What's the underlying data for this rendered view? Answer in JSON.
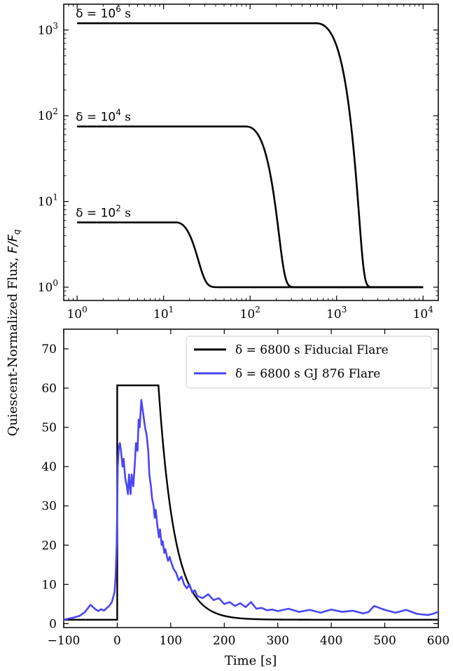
{
  "shared_ylabel": "Quiescent-Normalized Flux, F/F_q",
  "shared_ylabel_plain": "Quiescent-Normalized Flux,",
  "shared_ylabel_math": "F/F",
  "shared_ylabel_sub": "q",
  "chart_data": [
    {
      "type": "line",
      "panel": "top",
      "xscale": "log",
      "yscale": "log",
      "xlim": [
        0.7,
        15000
      ],
      "ylim": [
        0.7,
        2000
      ],
      "xticks": [
        1,
        10,
        100,
        1000,
        10000
      ],
      "xtick_labels": [
        {
          "base": "10",
          "exp": "0"
        },
        {
          "base": "10",
          "exp": "1"
        },
        {
          "base": "10",
          "exp": "2"
        },
        {
          "base": "10",
          "exp": "3"
        },
        {
          "base": "10",
          "exp": "4"
        }
      ],
      "yticks": [
        1,
        10,
        100,
        1000
      ],
      "ytick_labels": [
        {
          "base": "10",
          "exp": "0"
        },
        {
          "base": "10",
          "exp": "1"
        },
        {
          "base": "10",
          "exp": "2"
        },
        {
          "base": "10",
          "exp": "3"
        }
      ],
      "series": [
        {
          "annotation": {
            "prefix": "δ = 10",
            "exp": "2",
            "suffix": " s"
          },
          "peak": 5.7,
          "t_end": 14,
          "decay": 6.5,
          "color": "#000000"
        },
        {
          "annotation": {
            "prefix": "δ = 10",
            "exp": "4",
            "suffix": " s"
          },
          "peak": 75,
          "t_end": 90,
          "decay": 50,
          "color": "#000000"
        },
        {
          "annotation": {
            "prefix": "δ = 10",
            "exp": "6",
            "suffix": " s"
          },
          "peak": 1200,
          "t_end": 580,
          "decay": 380,
          "color": "#000000"
        }
      ],
      "x_start": 1,
      "x_end": 10000,
      "baseline": 1
    },
    {
      "type": "line",
      "panel": "bottom",
      "xlabel": "Time [s]",
      "xlim": [
        -100,
        600
      ],
      "ylim": [
        -1,
        75
      ],
      "xticks": [
        -100,
        0,
        100,
        200,
        300,
        400,
        500,
        600
      ],
      "xtick_labels": [
        "−100",
        "0",
        "100",
        "200",
        "300",
        "400",
        "500",
        "600"
      ],
      "yticks": [
        0,
        10,
        20,
        30,
        40,
        50,
        60,
        70
      ],
      "ytick_labels": [
        "0",
        "10",
        "20",
        "30",
        "40",
        "50",
        "60",
        "70"
      ],
      "legend_position": "top-right",
      "series": [
        {
          "name": "δ = 6800 s Fiducial Flare",
          "color": "#000000",
          "kind": "model",
          "quiescent": 1,
          "onset": 0,
          "plateau": 60.7,
          "plateau_end": 77,
          "decay_tau": 30
        },
        {
          "name": "δ = 6800 s GJ 876 Flare",
          "color": "#4a46f4",
          "kind": "observed",
          "x": [
            -100,
            -90,
            -80,
            -70,
            -60,
            -50,
            -45,
            -40,
            -35,
            -30,
            -25,
            -20,
            -15,
            -10,
            -8,
            -5,
            -3,
            -1,
            0,
            1,
            3,
            5,
            7,
            10,
            12,
            15,
            18,
            20,
            22,
            25,
            27,
            30,
            33,
            35,
            38,
            40,
            42,
            45,
            47,
            50,
            52,
            55,
            58,
            60,
            63,
            65,
            68,
            70,
            72,
            75,
            78,
            80,
            83,
            85,
            88,
            90,
            93,
            95,
            98,
            100,
            105,
            110,
            115,
            120,
            125,
            130,
            135,
            140,
            145,
            150,
            160,
            170,
            180,
            190,
            200,
            210,
            220,
            230,
            240,
            250,
            260,
            270,
            280,
            290,
            300,
            320,
            340,
            360,
            380,
            400,
            420,
            440,
            460,
            470,
            480,
            500,
            520,
            540,
            560,
            580,
            590,
            600
          ],
          "y": [
            1.0,
            1.3,
            1.6,
            2.0,
            3.0,
            4.8,
            4.2,
            3.6,
            3.2,
            3.7,
            3.3,
            3.9,
            4.5,
            5.5,
            6.5,
            8.0,
            12,
            20,
            30,
            40,
            45,
            46,
            44,
            40,
            42,
            37,
            35,
            33,
            38,
            33,
            38,
            35,
            41,
            46,
            44,
            52,
            50,
            57,
            55,
            52,
            50,
            48,
            44,
            38,
            35,
            32,
            30,
            27,
            29,
            25,
            22,
            24,
            20,
            21,
            18,
            19,
            17,
            16,
            17,
            16,
            14,
            13,
            11,
            12,
            10,
            9,
            10,
            8,
            8.5,
            7,
            6.5,
            7.5,
            6,
            6.5,
            5.0,
            5.5,
            4.5,
            5.2,
            4.2,
            5.5,
            3.8,
            4.0,
            3.4,
            3.6,
            3.2,
            3.8,
            3.0,
            3.5,
            2.8,
            3.6,
            3.0,
            3.3,
            2.6,
            3.0,
            4.5,
            3.5,
            2.8,
            3.5,
            2.5,
            2.2,
            2.5,
            3.0
          ]
        }
      ]
    }
  ]
}
